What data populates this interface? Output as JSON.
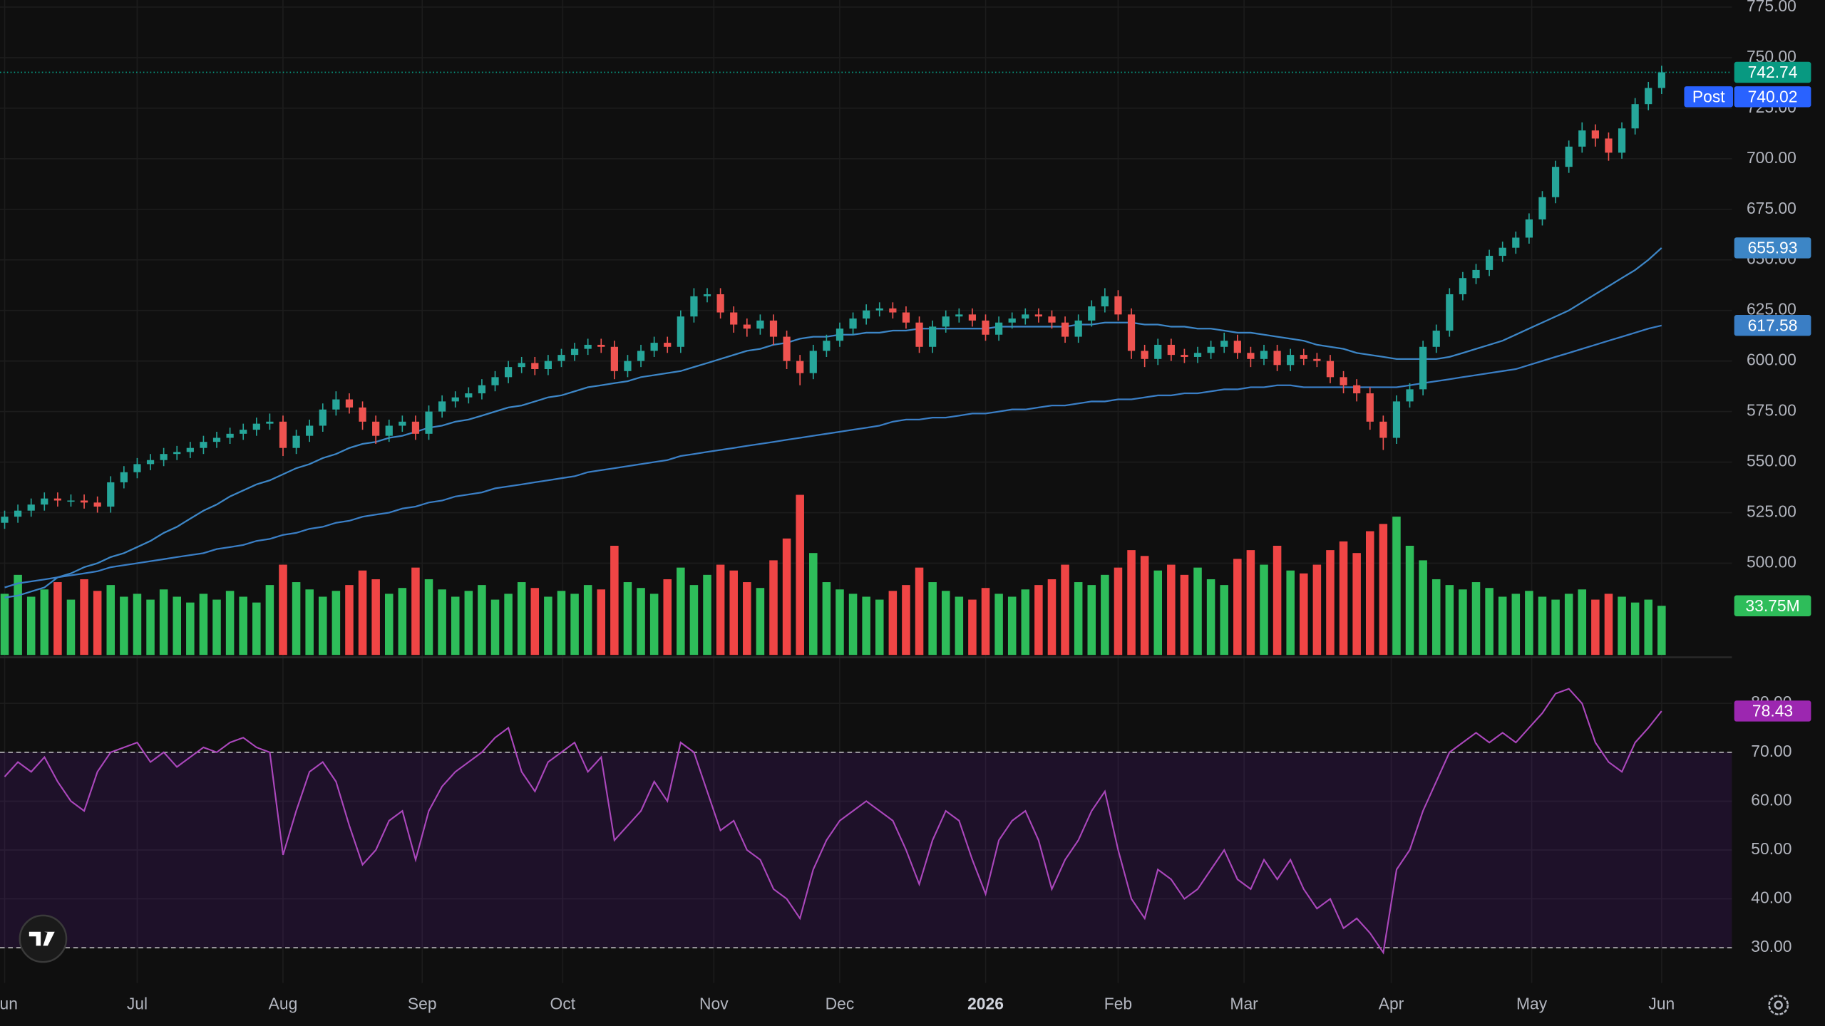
{
  "chart_data": {
    "type": "candlestick",
    "open": [
      520,
      523,
      526,
      529,
      532,
      531,
      531,
      530,
      528,
      540,
      545,
      549,
      551,
      554,
      555,
      557,
      560,
      562,
      564,
      566,
      569,
      570,
      557,
      563,
      568,
      576,
      581,
      577,
      570,
      563,
      568,
      570,
      564,
      575,
      580,
      582,
      584,
      588,
      592,
      597,
      599,
      596,
      600,
      603,
      606,
      608,
      607,
      595,
      600,
      605,
      609,
      607,
      622,
      632,
      633,
      624,
      618,
      616,
      620,
      612,
      600,
      594,
      605,
      610,
      616,
      621,
      625,
      626,
      624,
      619,
      607,
      617,
      622,
      623,
      620,
      613,
      619,
      621,
      623,
      622,
      619,
      612,
      620,
      627,
      632,
      623,
      605,
      601,
      608,
      603,
      602,
      604,
      607,
      610,
      604,
      601,
      605,
      598,
      603,
      601,
      600,
      592,
      588,
      584,
      570,
      562,
      580,
      586,
      607,
      615,
      633,
      641,
      645,
      652,
      656,
      661,
      670,
      681,
      696,
      706,
      714,
      710,
      703,
      715,
      727,
      735
    ],
    "high": [
      526,
      529,
      532,
      535,
      535,
      534,
      534,
      533,
      543,
      548,
      552,
      554,
      557,
      558,
      560,
      563,
      565,
      567,
      569,
      572,
      574,
      573,
      566,
      571,
      579,
      585,
      584,
      580,
      573,
      571,
      573,
      573,
      578,
      583,
      585,
      587,
      591,
      595,
      600,
      602,
      602,
      603,
      606,
      609,
      611,
      611,
      610,
      603,
      608,
      612,
      612,
      625,
      636,
      636,
      636,
      627,
      621,
      623,
      623,
      615,
      603,
      608,
      613,
      619,
      624,
      628,
      629,
      629,
      627,
      622,
      620,
      625,
      626,
      626,
      623,
      622,
      624,
      626,
      626,
      625,
      622,
      623,
      630,
      636,
      635,
      626,
      608,
      611,
      611,
      606,
      607,
      610,
      614,
      613,
      607,
      608,
      608,
      606,
      606,
      604,
      603,
      595,
      591,
      587,
      573,
      583,
      589,
      610,
      618,
      636,
      644,
      648,
      655,
      659,
      664,
      673,
      684,
      699,
      709,
      718,
      717,
      713,
      718,
      730,
      738,
      746
    ],
    "low": [
      517,
      520,
      523,
      526,
      528,
      528,
      527,
      525,
      525,
      537,
      542,
      546,
      548,
      551,
      552,
      554,
      557,
      559,
      561,
      563,
      566,
      553,
      554,
      560,
      565,
      573,
      574,
      566,
      559,
      560,
      565,
      561,
      561,
      572,
      577,
      579,
      581,
      585,
      589,
      594,
      593,
      593,
      597,
      600,
      603,
      604,
      591,
      592,
      597,
      602,
      604,
      604,
      619,
      629,
      621,
      614,
      612,
      613,
      608,
      596,
      588,
      591,
      602,
      607,
      613,
      618,
      622,
      621,
      616,
      604,
      604,
      614,
      619,
      617,
      610,
      610,
      616,
      618,
      619,
      616,
      609,
      609,
      617,
      624,
      620,
      601,
      597,
      598,
      600,
      599,
      599,
      601,
      604,
      601,
      597,
      598,
      595,
      595,
      598,
      597,
      589,
      584,
      580,
      566,
      556,
      559,
      577,
      583,
      604,
      612,
      630,
      638,
      642,
      649,
      653,
      658,
      667,
      678,
      693,
      703,
      706,
      699,
      700,
      712,
      724,
      732
    ],
    "close": [
      523,
      526,
      529,
      532,
      531,
      531,
      530,
      528,
      540,
      545,
      549,
      551,
      554,
      555,
      557,
      560,
      562,
      564,
      566,
      569,
      570,
      557,
      563,
      568,
      576,
      581,
      577,
      570,
      563,
      568,
      570,
      564,
      575,
      580,
      582,
      584,
      588,
      592,
      597,
      599,
      596,
      600,
      603,
      606,
      608,
      607,
      595,
      600,
      605,
      609,
      607,
      622,
      632,
      633,
      624,
      618,
      616,
      620,
      612,
      600,
      594,
      605,
      610,
      616,
      621,
      625,
      626,
      624,
      619,
      607,
      617,
      622,
      623,
      620,
      613,
      619,
      621,
      623,
      622,
      619,
      612,
      620,
      627,
      632,
      623,
      605,
      601,
      608,
      603,
      602,
      604,
      607,
      610,
      604,
      601,
      605,
      598,
      603,
      601,
      600,
      592,
      588,
      584,
      570,
      562,
      580,
      586,
      607,
      615,
      633,
      641,
      645,
      652,
      656,
      661,
      670,
      681,
      696,
      706,
      714,
      710,
      703,
      715,
      727,
      735,
      742.74
    ],
    "up_color": "#26a69a",
    "down_color": "#ef5350",
    "last_color": "#089981",
    "post_label": "Post",
    "post_price": 740.02,
    "post_color": "#2962ff",
    "ylim": [
      453.5,
      778.5
    ],
    "yticks": [
      {
        "value": 500,
        "label": "500.00"
      },
      {
        "value": 525,
        "label": "525.00"
      },
      {
        "value": 550,
        "label": "550.00"
      },
      {
        "value": 575,
        "label": "575.00"
      },
      {
        "value": 600,
        "label": "600.00"
      },
      {
        "value": 625,
        "label": "625.00"
      },
      {
        "value": 650,
        "label": "650.00"
      },
      {
        "value": 675,
        "label": "675.00"
      },
      {
        "value": 700,
        "label": "700.00"
      },
      {
        "value": 725,
        "label": "725.00"
      },
      {
        "value": 750,
        "label": "750.00"
      },
      {
        "value": 775,
        "label": "775.00"
      }
    ],
    "xlim": [
      -0.35,
      130.3
    ],
    "xticks": [
      {
        "value": 0,
        "label": "Jun"
      },
      {
        "value": 10,
        "label": "Jul"
      },
      {
        "value": 21,
        "label": "Aug"
      },
      {
        "value": 31.5,
        "label": "Sep"
      },
      {
        "value": 42.1,
        "label": "Oct"
      },
      {
        "value": 53.5,
        "label": "Nov"
      },
      {
        "value": 63,
        "label": "Dec"
      },
      {
        "value": 74,
        "label": "2026",
        "bold": true
      },
      {
        "value": 84,
        "label": "Feb"
      },
      {
        "value": 93.5,
        "label": "Mar"
      },
      {
        "value": 104.6,
        "label": "Apr"
      },
      {
        "value": 115.2,
        "label": "May"
      },
      {
        "value": 125,
        "label": "Jun"
      }
    ],
    "grid": true,
    "overlays": [
      {
        "color": "#3d86c6",
        "values": [
          483,
          484,
          486,
          488,
          493,
          495,
          498,
          500,
          503,
          505,
          508,
          511,
          515,
          518,
          522,
          526,
          529,
          533,
          536,
          539,
          541,
          544,
          547,
          549,
          552,
          554,
          557,
          559,
          560,
          562,
          563,
          565,
          567,
          568,
          570,
          571,
          573,
          575,
          577,
          578,
          580,
          582,
          583,
          585,
          587,
          588,
          589,
          590,
          592,
          593,
          594,
          595,
          597,
          599,
          601,
          603,
          605,
          606,
          608,
          609,
          611,
          612,
          612,
          613,
          613,
          614,
          614,
          615,
          615,
          616,
          616,
          616,
          616,
          616,
          616,
          617,
          617,
          617,
          617,
          617,
          617,
          618,
          618,
          619,
          619,
          619,
          618,
          618,
          617,
          617,
          616,
          616,
          615,
          614,
          614,
          613,
          612,
          611,
          610,
          608,
          607,
          606,
          604,
          603,
          602,
          601,
          601,
          601,
          601,
          602,
          604,
          606,
          608,
          610,
          613,
          616,
          619,
          622,
          625,
          629,
          633,
          637,
          641,
          645,
          650,
          655.93
        ]
      },
      {
        "color": "#3a7ec5",
        "values": [
          488,
          490,
          491,
          492,
          493,
          494,
          495,
          496,
          498,
          499,
          500,
          501,
          502,
          503,
          504,
          505,
          507,
          508,
          509,
          511,
          512,
          514,
          515,
          517,
          518,
          520,
          521,
          523,
          524,
          525,
          527,
          528,
          530,
          531,
          533,
          534,
          535,
          537,
          538,
          539,
          540,
          541,
          542,
          543,
          545,
          546,
          547,
          548,
          549,
          550,
          551,
          553,
          554,
          555,
          556,
          557,
          558,
          559,
          560,
          561,
          562,
          563,
          564,
          565,
          566,
          567,
          568,
          570,
          571,
          571,
          572,
          572,
          573,
          574,
          574,
          575,
          576,
          576,
          577,
          578,
          578,
          579,
          580,
          580,
          581,
          581,
          582,
          583,
          583,
          584,
          584,
          585,
          586,
          586,
          587,
          587,
          588,
          588,
          587,
          587,
          587,
          587,
          587,
          587,
          587,
          587,
          588,
          589,
          590,
          591,
          592,
          593,
          594,
          595,
          596,
          598,
          600,
          602,
          604,
          606,
          608,
          610,
          612,
          614,
          616,
          617.58
        ]
      }
    ],
    "volume": {
      "values": [
        42,
        55,
        40,
        45,
        50,
        38,
        52,
        44,
        48,
        40,
        42,
        38,
        45,
        40,
        36,
        42,
        38,
        44,
        40,
        36,
        48,
        62,
        50,
        45,
        40,
        44,
        48,
        58,
        52,
        42,
        46,
        60,
        52,
        45,
        40,
        44,
        48,
        38,
        42,
        50,
        46,
        40,
        44,
        42,
        48,
        45,
        75,
        50,
        46,
        42,
        52,
        60,
        48,
        55,
        62,
        58,
        50,
        46,
        65,
        80,
        110,
        70,
        50,
        45,
        42,
        40,
        38,
        44,
        48,
        60,
        50,
        44,
        40,
        38,
        46,
        42,
        40,
        45,
        48,
        52,
        62,
        50,
        48,
        55,
        60,
        72,
        68,
        58,
        62,
        55,
        60,
        52,
        48,
        66,
        72,
        62,
        75,
        58,
        56,
        62,
        72,
        78,
        70,
        85,
        90,
        95,
        75,
        65,
        52,
        48,
        45,
        50,
        46,
        40,
        42,
        44,
        40,
        38,
        42,
        45,
        38,
        42,
        40,
        36,
        38,
        33.75
      ],
      "last_label": "33.75M",
      "ylim": [
        0,
        450
      ],
      "up_color": "#2ebd5a",
      "down_color": "#f04545"
    },
    "rsi": {
      "values": [
        65,
        68,
        66,
        69,
        64,
        60,
        58,
        66,
        70,
        71,
        72,
        68,
        70,
        67,
        69,
        71,
        70,
        72,
        73,
        71,
        70,
        49,
        58,
        66,
        68,
        64,
        55,
        47,
        50,
        56,
        58,
        48,
        58,
        63,
        66,
        68,
        70,
        73,
        75,
        66,
        62,
        68,
        70,
        72,
        66,
        69,
        52,
        55,
        58,
        64,
        60,
        72,
        70,
        62,
        54,
        56,
        50,
        48,
        42,
        40,
        36,
        46,
        52,
        56,
        58,
        60,
        58,
        56,
        50,
        43,
        52,
        58,
        56,
        48,
        41,
        52,
        56,
        58,
        52,
        42,
        48,
        52,
        58,
        62,
        50,
        40,
        36,
        46,
        44,
        40,
        42,
        46,
        50,
        44,
        42,
        48,
        44,
        48,
        42,
        38,
        40,
        34,
        36,
        33,
        29,
        46,
        50,
        58,
        64,
        70,
        72,
        74,
        72,
        74,
        72,
        75,
        78,
        82,
        83,
        80,
        72,
        68,
        66,
        72,
        75,
        78.43
      ],
      "color": "#ab47bc",
      "ylim": [
        22.8,
        89.2
      ],
      "yticks": [
        {
          "value": 30,
          "label": "30.00"
        },
        {
          "value": 40,
          "label": "40.00"
        },
        {
          "value": 50,
          "label": "50.00"
        },
        {
          "value": 60,
          "label": "60.00"
        },
        {
          "value": 70,
          "label": "70.00"
        },
        {
          "value": 80,
          "label": "80.00"
        }
      ],
      "levels": [
        70,
        30
      ],
      "band_color": "#7e22ce"
    }
  }
}
